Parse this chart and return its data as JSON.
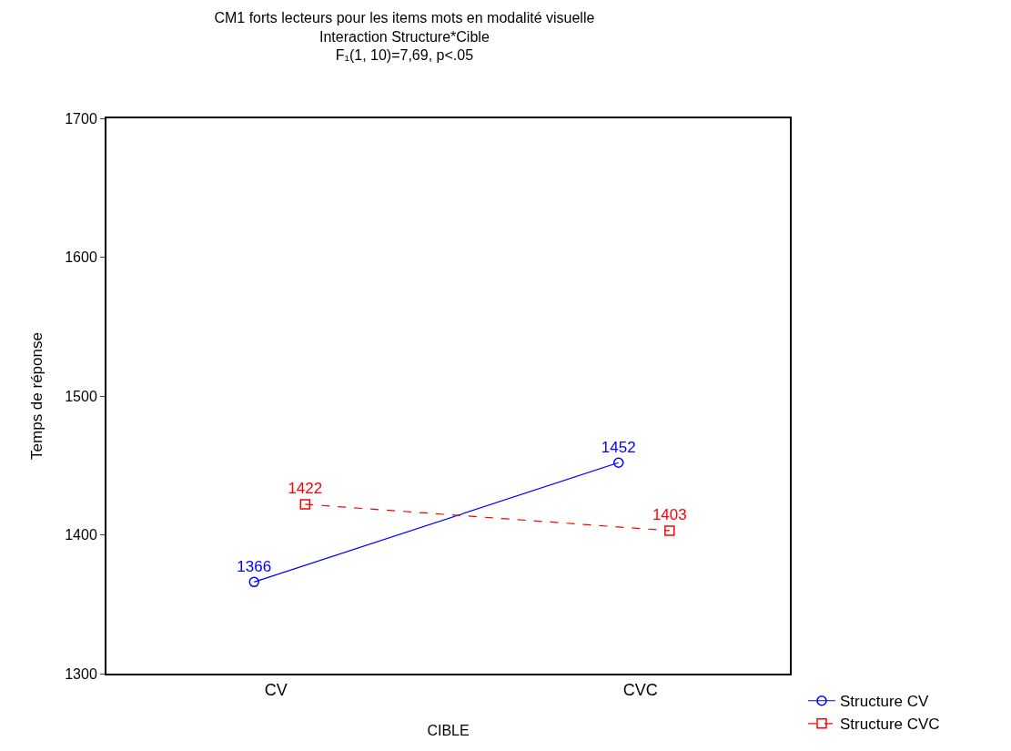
{
  "chart_data": {
    "type": "line",
    "title": "CM1 forts lecteurs pour les items mots en modalité visuelle\nInteraction Structure*Cible\nF₁(1, 10)=7,69, p<.05",
    "xlabel": "CIBLE",
    "ylabel": "Temps de réponse",
    "categories": [
      "CV",
      "CVC"
    ],
    "series": [
      {
        "name": "Structure CV",
        "color": "#0000ff",
        "values": [
          1366,
          1452
        ],
        "marker": "circle",
        "line_style": "solid"
      },
      {
        "name": "Structure CVC",
        "color": "#ff0000",
        "values": [
          1422,
          1403
        ],
        "marker": "square",
        "line_style": "dashed"
      }
    ],
    "ylim": [
      1300,
      1700
    ],
    "yticks": [
      1300,
      1400,
      1500,
      1600,
      1700
    ],
    "grid": false,
    "legend": "bottom right",
    "data_labels": true
  }
}
